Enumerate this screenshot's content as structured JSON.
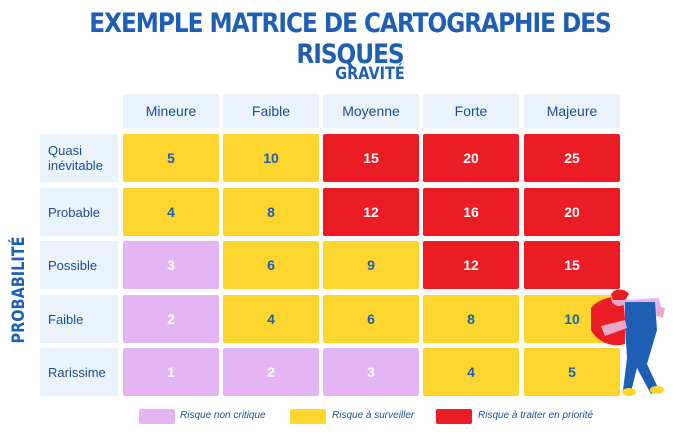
{
  "title": "EXEMPLE MATRICE DE CARTOGRAPHIE DES RISQUES",
  "col_axis_label": "GRAVITÉ",
  "row_axis_label": "PROBABILITÉ",
  "columns": [
    "Mineure",
    "Faible",
    "Moyenne",
    "Forte",
    "Majeure"
  ],
  "rows": [
    {
      "label": "Quasi inévitable",
      "values": [
        "5",
        "10",
        "15",
        "20",
        "25"
      ],
      "levels": [
        "yellow",
        "yellow",
        "red",
        "red",
        "red"
      ]
    },
    {
      "label": "Probable",
      "values": [
        "4",
        "8",
        "12",
        "16",
        "20"
      ],
      "levels": [
        "yellow",
        "yellow",
        "red",
        "red",
        "red"
      ]
    },
    {
      "label": "Possible",
      "values": [
        "3",
        "6",
        "9",
        "12",
        "15"
      ],
      "levels": [
        "lilac",
        "yellow",
        "yellow",
        "red",
        "red"
      ]
    },
    {
      "label": "Faible",
      "values": [
        "2",
        "4",
        "6",
        "8",
        "10"
      ],
      "levels": [
        "lilac",
        "yellow",
        "yellow",
        "yellow",
        "yellow"
      ]
    },
    {
      "label": "Rarissime",
      "values": [
        "1",
        "2",
        "3",
        "4",
        "5"
      ],
      "levels": [
        "lilac",
        "lilac",
        "lilac",
        "yellow",
        "yellow"
      ]
    }
  ],
  "legend": [
    {
      "label": "Risque non critique",
      "level": "lilac"
    },
    {
      "label": "Risque à surveiller",
      "level": "yellow"
    },
    {
      "label": "Risque à traiter en priorité",
      "level": "red"
    }
  ],
  "colors": {
    "lilac": "#e3b6f3",
    "yellow": "#fcd62f",
    "red": "#ec1c24",
    "accent": "#1f5fb3"
  },
  "illustration": "person-leaning-on-matrix"
}
